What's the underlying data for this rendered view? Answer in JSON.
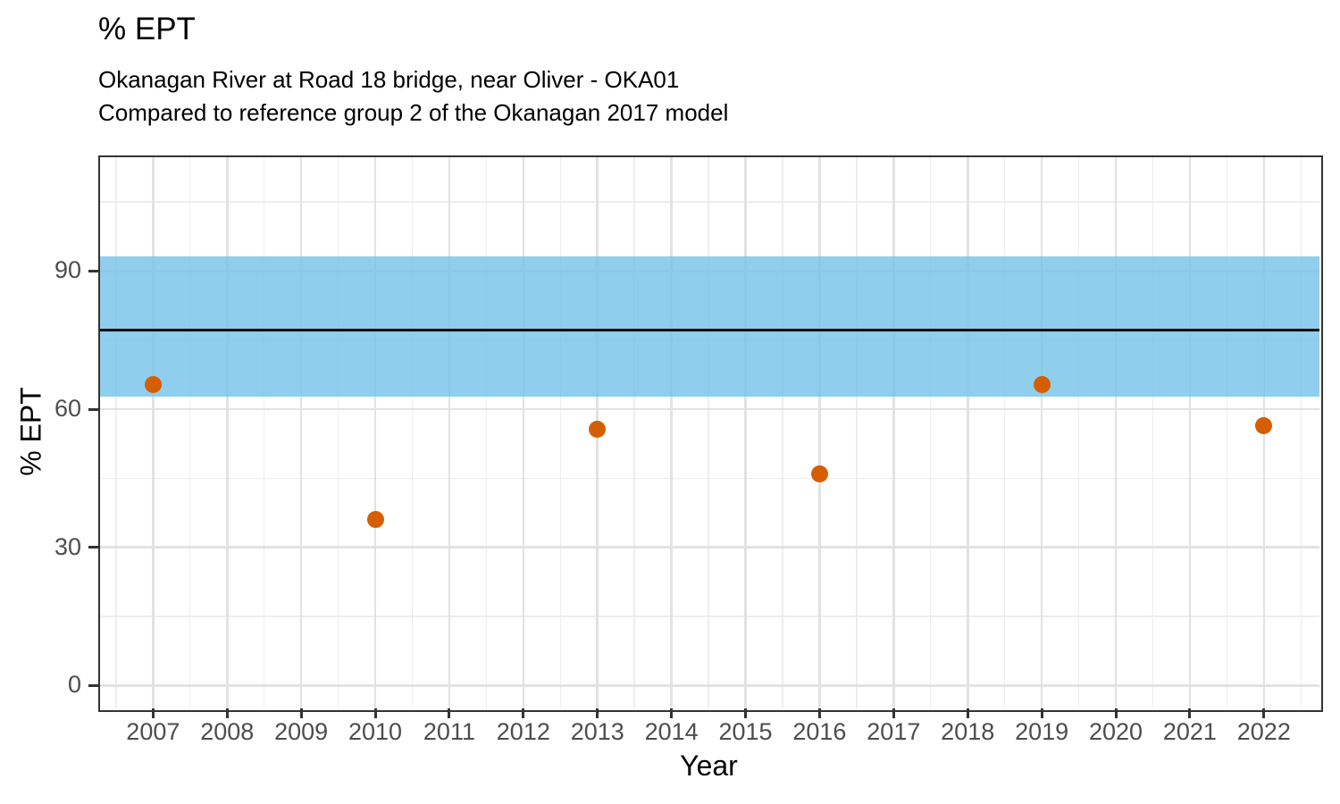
{
  "chart_data": {
    "type": "scatter",
    "title": "% EPT",
    "subtitle": [
      "Okanagan River at Road 18 bridge, near Oliver - OKA01",
      "Compared to reference group 2 of the Okanagan 2017 model"
    ],
    "xlabel": "Year",
    "ylabel": "% EPT",
    "xlim": [
      2006.26,
      2022.75
    ],
    "ylim": [
      -4.97,
      115.08
    ],
    "x_ticks": [
      2007,
      2008,
      2009,
      2010,
      2011,
      2012,
      2013,
      2014,
      2015,
      2016,
      2017,
      2018,
      2019,
      2020,
      2021,
      2022
    ],
    "y_ticks": [
      0,
      30,
      60,
      90
    ],
    "y_minor_gridlines": [
      15,
      45,
      75,
      105
    ],
    "grid": {
      "major": true,
      "minor": true
    },
    "legend_position": "none",
    "series": [
      {
        "name": "% EPT",
        "marker": "circle",
        "color": "#D55E00",
        "x": [
          2007,
          2010,
          2013,
          2016,
          2019,
          2022
        ],
        "y": [
          65.3,
          36.0,
          55.7,
          46.0,
          65.3,
          56.4
        ]
      }
    ],
    "reference_band": {
      "ymin": 62.8,
      "ymax": 93.1,
      "color": "#78C3E9",
      "opacity": 0.82
    },
    "reference_line": {
      "y": 77.2,
      "color": "#000000"
    }
  }
}
